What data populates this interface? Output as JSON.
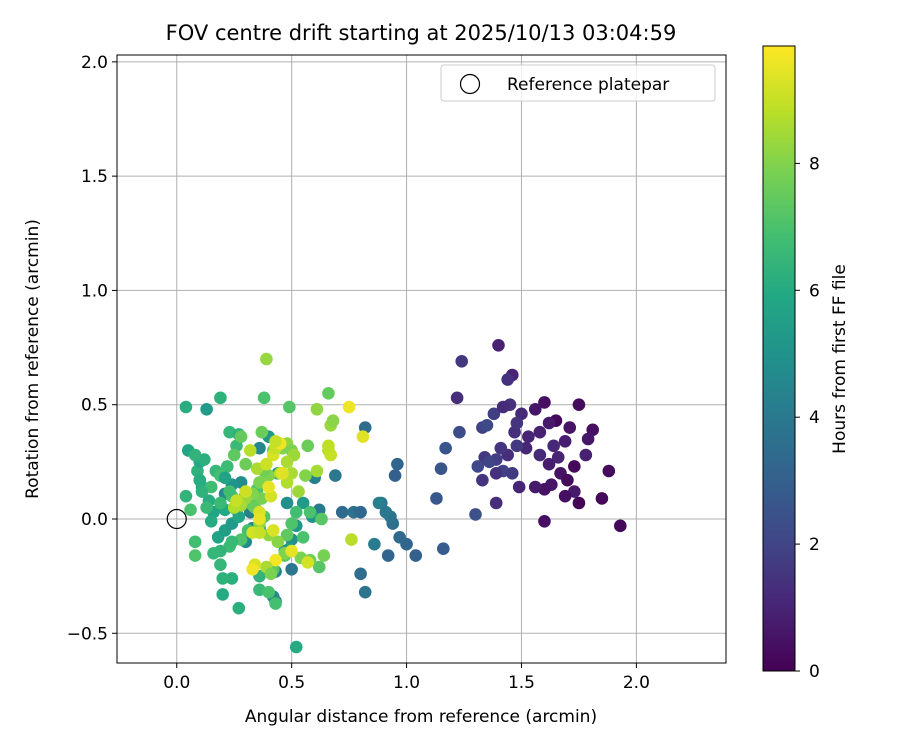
{
  "chart_data": {
    "type": "scatter",
    "title": "FOV centre drift starting at 2025/10/13 03:04:59",
    "xlabel": "Angular distance from reference (arcmin)",
    "ylabel": "Rotation from reference (arcmin)",
    "xlim": [
      -0.26,
      2.39
    ],
    "ylim": [
      -0.63,
      2.03
    ],
    "xticks": [
      0.0,
      0.5,
      1.0,
      1.5,
      2.0
    ],
    "xtick_labels": [
      "0.0",
      "0.5",
      "1.0",
      "1.5",
      "2.0"
    ],
    "yticks": [
      -0.5,
      0.0,
      0.5,
      1.0,
      1.5,
      2.0
    ],
    "ytick_labels": [
      "−0.5",
      "0.0",
      "0.5",
      "1.0",
      "1.5",
      "2.0"
    ],
    "grid": true,
    "legend": {
      "position": "top-right",
      "entries": [
        "Reference platepar"
      ]
    },
    "reference_point": {
      "x": 0.0,
      "y": 0.0,
      "label": "Reference platepar"
    },
    "colorbar": {
      "label": "Hours from first FF file",
      "colormap": "viridis",
      "range": [
        0,
        9.85
      ],
      "ticks": [
        0,
        2,
        4,
        6,
        8
      ],
      "tick_labels": [
        "0",
        "2",
        "4",
        "6",
        "8"
      ]
    },
    "points": [
      [
        1.65,
        0.43,
        0.2
      ],
      [
        1.71,
        0.4,
        0.5
      ],
      [
        1.75,
        0.5,
        0.3
      ],
      [
        1.81,
        0.39,
        0.4
      ],
      [
        1.79,
        0.35,
        0.6
      ],
      [
        1.69,
        0.34,
        0.8
      ],
      [
        1.62,
        0.42,
        0.7
      ],
      [
        1.58,
        0.38,
        0.9
      ],
      [
        1.6,
        0.51,
        0.4
      ],
      [
        1.56,
        0.48,
        0.6
      ],
      [
        1.73,
        0.23,
        0.2
      ],
      [
        1.67,
        0.2,
        0.5
      ],
      [
        1.63,
        0.15,
        0.6
      ],
      [
        1.62,
        0.24,
        0.8
      ],
      [
        1.66,
        0.27,
        1.0
      ],
      [
        1.7,
        0.17,
        0.3
      ],
      [
        1.78,
        0.28,
        0.9
      ],
      [
        1.73,
        0.12,
        0.7
      ],
      [
        1.75,
        0.07,
        0.1
      ],
      [
        1.69,
        0.1,
        0.4
      ],
      [
        1.85,
        0.09,
        0.2
      ],
      [
        1.88,
        0.21,
        0.3
      ],
      [
        1.93,
        -0.03,
        0.2
      ],
      [
        1.6,
        -0.01,
        0.4
      ],
      [
        1.6,
        0.13,
        0.5
      ],
      [
        1.56,
        0.14,
        0.7
      ],
      [
        1.64,
        0.32,
        1.1
      ],
      [
        1.58,
        0.28,
        1.2
      ],
      [
        1.53,
        0.36,
        1.0
      ],
      [
        1.47,
        0.38,
        1.3
      ],
      [
        1.5,
        0.46,
        1.2
      ],
      [
        1.45,
        0.5,
        1.4
      ],
      [
        1.48,
        0.42,
        1.5
      ],
      [
        1.52,
        0.31,
        1.1
      ],
      [
        1.48,
        0.32,
        1.6
      ],
      [
        1.44,
        0.28,
        1.3
      ],
      [
        1.41,
        0.31,
        1.5
      ],
      [
        1.39,
        0.26,
        1.8
      ],
      [
        1.34,
        0.27,
        1.6
      ],
      [
        1.31,
        0.23,
        2.1
      ],
      [
        1.36,
        0.25,
        2.0
      ],
      [
        1.42,
        0.21,
        1.9
      ],
      [
        1.46,
        0.2,
        1.7
      ],
      [
        1.39,
        0.2,
        1.4
      ],
      [
        1.33,
        0.17,
        1.5
      ],
      [
        1.38,
        0.46,
        1.8
      ],
      [
        1.33,
        0.4,
        1.9
      ],
      [
        1.35,
        0.41,
        2.2
      ],
      [
        1.42,
        0.49,
        1.2
      ],
      [
        1.46,
        0.63,
        1.0
      ],
      [
        1.44,
        0.61,
        1.4
      ],
      [
        1.4,
        0.76,
        0.9
      ],
      [
        1.24,
        0.69,
        1.6
      ],
      [
        1.22,
        0.53,
        1.3
      ],
      [
        1.49,
        0.14,
        1.0
      ],
      [
        1.39,
        0.07,
        1.3
      ],
      [
        1.3,
        0.02,
        2.4
      ],
      [
        1.23,
        0.38,
        2.3
      ],
      [
        1.17,
        0.31,
        2.6
      ],
      [
        1.15,
        0.22,
        2.6
      ],
      [
        1.13,
        0.09,
        2.7
      ],
      [
        1.16,
        -0.13,
        2.9
      ],
      [
        1.04,
        -0.16,
        3.0
      ],
      [
        1.0,
        -0.11,
        3.2
      ],
      [
        0.97,
        -0.08,
        3.4
      ],
      [
        0.95,
        0.19,
        3.0
      ],
      [
        0.96,
        0.24,
        3.2
      ],
      [
        0.94,
        -0.02,
        3.6
      ],
      [
        0.93,
        0.01,
        3.8
      ],
      [
        0.91,
        0.03,
        3.9
      ],
      [
        0.89,
        0.07,
        3.7
      ],
      [
        0.86,
        -0.11,
        4.1
      ],
      [
        0.88,
        0.07,
        4.2
      ],
      [
        0.82,
        0.4,
        3.5
      ],
      [
        0.77,
        0.03,
        3.7
      ],
      [
        0.72,
        0.03,
        3.4
      ],
      [
        0.69,
        0.19,
        3.9
      ],
      [
        0.6,
        0.18,
        4.3
      ],
      [
        0.62,
        0.04,
        4.0
      ],
      [
        0.8,
        0.03,
        3.3
      ],
      [
        0.82,
        -0.32,
        3.8
      ],
      [
        0.8,
        -0.24,
        3.5
      ],
      [
        0.92,
        -0.16,
        3.2
      ],
      [
        0.5,
        -0.22,
        3.9
      ],
      [
        0.43,
        -0.23,
        4.4
      ],
      [
        0.43,
        -0.36,
        4.1
      ],
      [
        0.42,
        -0.34,
        4.6
      ],
      [
        0.3,
        -0.1,
        4.7
      ],
      [
        0.33,
        -0.04,
        4.5
      ],
      [
        0.36,
        -0.04,
        4.8
      ],
      [
        0.32,
        0.03,
        4.3
      ],
      [
        0.28,
        0.16,
        4.8
      ],
      [
        0.24,
        0.15,
        5.0
      ],
      [
        0.21,
        0.11,
        4.6
      ],
      [
        0.36,
        0.31,
        4.5
      ],
      [
        0.4,
        0.36,
        5.2
      ],
      [
        0.44,
        0.2,
        5.0
      ],
      [
        0.48,
        0.07,
        4.9
      ],
      [
        0.55,
        0.07,
        5.3
      ],
      [
        0.59,
        0.01,
        5.1
      ],
      [
        0.52,
        -0.03,
        5.2
      ],
      [
        0.5,
        -0.09,
        5.0
      ],
      [
        0.49,
        -0.13,
        5.4
      ],
      [
        0.47,
        -0.14,
        5.3
      ],
      [
        0.18,
        -0.08,
        5.7
      ],
      [
        0.21,
        -0.05,
        5.5
      ],
      [
        0.24,
        -0.02,
        5.3
      ],
      [
        0.26,
        0.04,
        5.5
      ],
      [
        0.27,
        0.01,
        5.8
      ],
      [
        0.21,
        0.04,
        5.9
      ],
      [
        0.16,
        0.03,
        5.8
      ],
      [
        0.15,
        -0.01,
        6.0
      ],
      [
        0.14,
        0.08,
        6.1
      ],
      [
        0.11,
        0.14,
        5.6
      ],
      [
        0.1,
        0.17,
        6.0
      ],
      [
        0.09,
        0.21,
        6.3
      ],
      [
        0.1,
        0.25,
        5.9
      ],
      [
        0.12,
        0.26,
        6.2
      ],
      [
        0.05,
        0.3,
        5.8
      ],
      [
        0.08,
        0.28,
        6.4
      ],
      [
        0.04,
        0.49,
        6.1
      ],
      [
        0.13,
        0.48,
        5.4
      ],
      [
        0.19,
        0.53,
        6.3
      ],
      [
        0.23,
        0.38,
        6.5
      ],
      [
        0.27,
        0.37,
        6.3
      ],
      [
        0.26,
        0.32,
        6.6
      ],
      [
        0.22,
        0.23,
        6.7
      ],
      [
        0.17,
        0.21,
        6.5
      ],
      [
        0.19,
        0.19,
        6.9
      ],
      [
        0.15,
        0.14,
        6.8
      ],
      [
        0.11,
        0.12,
        6.3
      ],
      [
        0.13,
        0.05,
        6.6
      ],
      [
        0.19,
        0.07,
        6.6
      ],
      [
        0.24,
        0.1,
        7.0
      ],
      [
        0.23,
        0.12,
        6.8
      ],
      [
        0.29,
        0.09,
        7.1
      ],
      [
        0.35,
        0.13,
        7.0
      ],
      [
        0.33,
        0.06,
        7.3
      ],
      [
        0.38,
        0.01,
        7.2
      ],
      [
        0.31,
        -0.05,
        6.9
      ],
      [
        0.28,
        -0.09,
        7.1
      ],
      [
        0.23,
        -0.12,
        6.7
      ],
      [
        0.24,
        -0.1,
        6.6
      ],
      [
        0.19,
        -0.14,
        6.4
      ],
      [
        0.16,
        -0.15,
        6.5
      ],
      [
        0.24,
        -0.26,
        6.2
      ],
      [
        0.2,
        -0.26,
        6.3
      ],
      [
        0.19,
        -0.2,
        6.5
      ],
      [
        0.2,
        -0.33,
        6.0
      ],
      [
        0.27,
        -0.39,
        6.2
      ],
      [
        0.36,
        -0.25,
        6.4
      ],
      [
        0.36,
        -0.31,
        6.6
      ],
      [
        0.4,
        -0.32,
        7.0
      ],
      [
        0.43,
        -0.37,
        6.9
      ],
      [
        0.52,
        -0.56,
        6.0
      ],
      [
        0.42,
        -0.22,
        7.2
      ],
      [
        0.47,
        -0.16,
        7.3
      ],
      [
        0.48,
        -0.07,
        7.4
      ],
      [
        0.5,
        -0.02,
        7.1
      ],
      [
        0.55,
        -0.08,
        7.0
      ],
      [
        0.52,
        0.03,
        6.8
      ],
      [
        0.58,
        0.03,
        7.0
      ],
      [
        0.63,
        0.0,
        7.3
      ],
      [
        0.62,
        -0.21,
        7.2
      ],
      [
        0.64,
        -0.16,
        7.8
      ],
      [
        0.58,
        -0.18,
        7.7
      ],
      [
        0.54,
        -0.17,
        7.9
      ],
      [
        0.47,
        -0.15,
        8.0
      ],
      [
        0.44,
        -0.1,
        8.1
      ],
      [
        0.4,
        -0.07,
        8.2
      ],
      [
        0.36,
        -0.02,
        8.2
      ],
      [
        0.34,
        0.05,
        7.6
      ],
      [
        0.37,
        0.09,
        7.8
      ],
      [
        0.33,
        0.11,
        8.0
      ],
      [
        0.3,
        0.09,
        8.3
      ],
      [
        0.28,
        0.06,
        8.5
      ],
      [
        0.36,
        0.16,
        7.9
      ],
      [
        0.4,
        0.19,
        8.0
      ],
      [
        0.38,
        0.21,
        7.7
      ],
      [
        0.35,
        0.22,
        8.6
      ],
      [
        0.3,
        0.24,
        7.6
      ],
      [
        0.25,
        0.28,
        7.4
      ],
      [
        0.28,
        0.36,
        7.5
      ],
      [
        0.37,
        0.38,
        7.6
      ],
      [
        0.42,
        0.3,
        7.8
      ],
      [
        0.46,
        0.31,
        8.0
      ],
      [
        0.48,
        0.33,
        8.2
      ],
      [
        0.5,
        0.3,
        7.9
      ],
      [
        0.51,
        0.28,
        8.4
      ],
      [
        0.5,
        0.2,
        8.6
      ],
      [
        0.45,
        0.2,
        8.8
      ],
      [
        0.48,
        0.16,
        8.7
      ],
      [
        0.53,
        0.12,
        8.4
      ],
      [
        0.56,
        0.19,
        8.0
      ],
      [
        0.57,
        0.32,
        7.6
      ],
      [
        0.61,
        0.21,
        8.5
      ],
      [
        0.66,
        0.3,
        8.8
      ],
      [
        0.67,
        0.28,
        9.0
      ],
      [
        0.66,
        0.32,
        8.9
      ],
      [
        0.67,
        0.41,
        8.3
      ],
      [
        0.68,
        0.43,
        8.1
      ],
      [
        0.66,
        0.55,
        7.5
      ],
      [
        0.61,
        0.48,
        8.2
      ],
      [
        0.49,
        0.49,
        7.2
      ],
      [
        0.38,
        0.53,
        7.0
      ],
      [
        0.39,
        0.7,
        8.3
      ],
      [
        0.75,
        0.49,
        9.6
      ],
      [
        0.81,
        0.36,
        9.4
      ],
      [
        0.76,
        -0.09,
        8.8
      ],
      [
        0.57,
        -0.19,
        9.2
      ],
      [
        0.5,
        -0.14,
        9.5
      ],
      [
        0.43,
        -0.18,
        9.7
      ],
      [
        0.42,
        -0.05,
        9.3
      ],
      [
        0.39,
        -0.21,
        8.6
      ],
      [
        0.41,
        -0.24,
        7.9
      ],
      [
        0.34,
        -0.2,
        9.3
      ],
      [
        0.33,
        -0.22,
        9.6
      ],
      [
        0.33,
        -0.06,
        9.2
      ],
      [
        0.36,
        -0.06,
        9.0
      ],
      [
        0.36,
        0.03,
        9.3
      ],
      [
        0.36,
        0.0,
        9.5
      ],
      [
        0.41,
        0.1,
        9.2
      ],
      [
        0.4,
        0.14,
        9.5
      ],
      [
        0.42,
        0.28,
        9.3
      ],
      [
        0.43,
        0.31,
        9.0
      ],
      [
        0.45,
        0.33,
        9.6
      ],
      [
        0.43,
        0.34,
        9.0
      ],
      [
        0.46,
        0.2,
        9.4
      ],
      [
        0.48,
        0.25,
        8.6
      ],
      [
        0.39,
        0.24,
        9.1
      ],
      [
        0.32,
        0.3,
        8.8
      ],
      [
        0.3,
        0.12,
        9.1
      ],
      [
        0.25,
        0.05,
        8.7
      ],
      [
        0.26,
        0.08,
        9.0
      ],
      [
        0.08,
        -0.1,
        6.8
      ],
      [
        0.08,
        -0.16,
        7.1
      ],
      [
        0.06,
        0.04,
        7.0
      ],
      [
        0.04,
        0.1,
        6.4
      ],
      [
        0.1,
        0.17,
        6.1
      ],
      [
        0.21,
        0.18,
        5.7
      ]
    ]
  }
}
